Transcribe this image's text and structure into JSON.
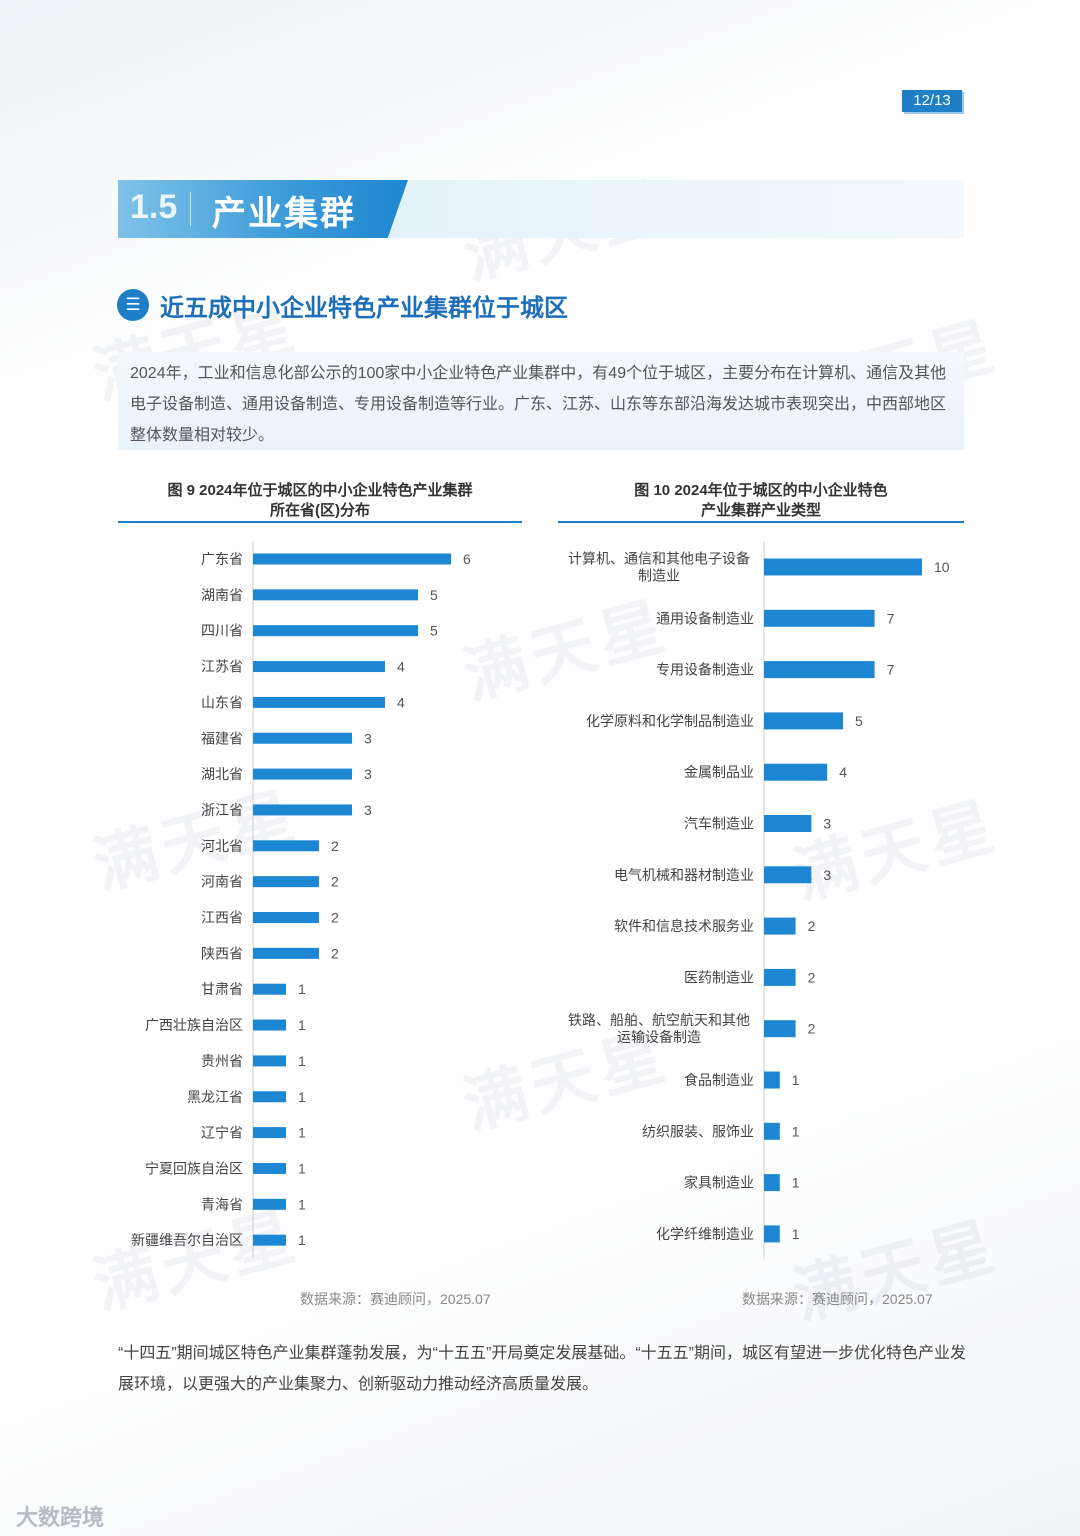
{
  "page": {
    "number": "12/13"
  },
  "section": {
    "number": "1.5",
    "title": "产业集群"
  },
  "subsection": {
    "icon": "layers-icon",
    "title": "近五成中小企业特色产业集群位于城区"
  },
  "intro": "2024年，工业和信息化部公示的100家中小企业特色产业集群中，有49个位于城区，主要分布在计算机、通信及其他电子设备制造、通用设备制造、专用设备制造等行业。广东、江苏、山东等东部沿海发达城市表现突出，中西部地区整体数量相对较少。",
  "watermark": "满天星",
  "colors": {
    "accent": "#1e7fc6",
    "bar": "#1e87d4"
  },
  "chart_data": [
    {
      "type": "bar",
      "orientation": "horizontal",
      "title_line1": "图 9  2024年位于城区的中小企业特色产业集群",
      "title_line2": "所在省(区)分布",
      "categories": [
        "广东省",
        "湖南省",
        "四川省",
        "江苏省",
        "山东省",
        "福建省",
        "湖北省",
        "浙江省",
        "河北省",
        "河南省",
        "江西省",
        "陕西省",
        "甘肃省",
        "广西壮族自治区",
        "贵州省",
        "黑龙江省",
        "辽宁省",
        "宁夏回族自治区",
        "青海省",
        "新疆维吾尔自治区"
      ],
      "values": [
        6,
        5,
        5,
        4,
        4,
        3,
        3,
        3,
        2,
        2,
        2,
        2,
        1,
        1,
        1,
        1,
        1,
        1,
        1,
        1
      ],
      "source": "数据来源：赛迪顾问，2025.07"
    },
    {
      "type": "bar",
      "orientation": "horizontal",
      "title_line1": "图 10  2024年位于城区的中小企业特色",
      "title_line2": "产业集群产业类型",
      "categories": [
        "计算机、通信和其他电子设备制造业",
        "通用设备制造业",
        "专用设备制造业",
        "化学原料和化学制品制造业",
        "金属制品业",
        "汽车制造业",
        "电气机械和器材制造业",
        "软件和信息技术服务业",
        "医药制造业",
        "铁路、船舶、航空航天和其他运输设备制造",
        "食品制造业",
        "纺织服装、服饰业",
        "家具制造业",
        "化学纤维制造业"
      ],
      "category_lines": [
        [
          "计算机、通信和其他电子设备",
          "制造业"
        ],
        [
          "通用设备制造业"
        ],
        [
          "专用设备制造业"
        ],
        [
          "化学原料和化学制品制造业"
        ],
        [
          "金属制品业"
        ],
        [
          "汽车制造业"
        ],
        [
          "电气机械和器材制造业"
        ],
        [
          "软件和信息技术服务业"
        ],
        [
          "医药制造业"
        ],
        [
          "铁路、船舶、航空航天和其他",
          "运输设备制造"
        ],
        [
          "食品制造业"
        ],
        [
          "纺织服装、服饰业"
        ],
        [
          "家具制造业"
        ],
        [
          "化学纤维制造业"
        ]
      ],
      "values": [
        10,
        7,
        7,
        5,
        4,
        3,
        3,
        2,
        2,
        2,
        1,
        1,
        1,
        1
      ],
      "source": "数据来源：赛迪顾问，2025.07"
    }
  ],
  "conclusion": "“十四五”期间城区特色产业集群蓬勃发展，为“十五五”开局奠定发展基础。“十五五”期间，城区有望进一步优化特色产业发展环境，以更强大的产业集聚力、创新驱动力推动经济高质量发展。",
  "footer": {
    "logo_text": "大数跨境"
  }
}
